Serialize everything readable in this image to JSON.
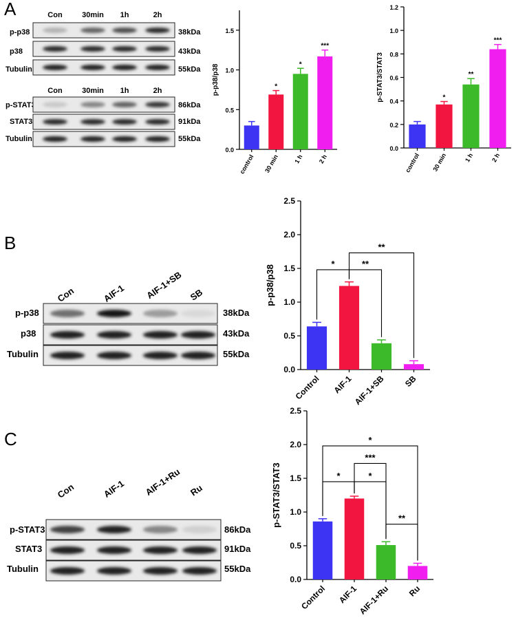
{
  "figure": {
    "panels": [
      {
        "label": "A",
        "blots": [
          {
            "lanes": [
              "Con",
              "30min",
              "1h",
              "2h"
            ],
            "rows": [
              {
                "name": "p-p38",
                "kda": "38kDa",
                "intensity": [
                  0.25,
                  0.6,
                  0.7,
                  0.85
                ]
              },
              {
                "name": "p38",
                "kda": "43kDa",
                "intensity": [
                  0.85,
                  0.85,
                  0.85,
                  0.85
                ]
              },
              {
                "name": "Tubulin",
                "kda": "55kDa",
                "intensity": [
                  0.9,
                  0.9,
                  0.9,
                  0.9
                ]
              }
            ]
          },
          {
            "lanes": [
              "Con",
              "30min",
              "1h",
              "2h"
            ],
            "rows": [
              {
                "name": "p-STAT3",
                "kda": "86kDa",
                "intensity": [
                  0.15,
                  0.45,
                  0.6,
                  0.8
                ]
              },
              {
                "name": "STAT3",
                "kda": "91kDa",
                "intensity": [
                  0.85,
                  0.85,
                  0.85,
                  0.85
                ]
              },
              {
                "name": "Tubulin",
                "kda": "55kDa",
                "intensity": [
                  0.9,
                  0.9,
                  0.9,
                  0.9
                ]
              }
            ]
          }
        ]
      },
      {
        "label": "B",
        "blots": [
          {
            "lanes": [
              "Con",
              "AIF-1",
              "AIF-1+SB",
              "SB"
            ],
            "rows": [
              {
                "name": "p-p38",
                "kda": "38kDa",
                "intensity": [
                  0.55,
                  0.95,
                  0.35,
                  0.08
                ]
              },
              {
                "name": "p38",
                "kda": "43kDa",
                "intensity": [
                  0.9,
                  0.9,
                  0.9,
                  0.9
                ]
              },
              {
                "name": "Tubulin",
                "kda": "55kDa",
                "intensity": [
                  0.9,
                  0.9,
                  0.9,
                  0.9
                ]
              }
            ]
          }
        ]
      },
      {
        "label": "C",
        "blots": [
          {
            "lanes": [
              "Con",
              "AIF-1",
              "AIF-1+Ru",
              "Ru"
            ],
            "rows": [
              {
                "name": "p-STAT3",
                "kda": "86kDa",
                "intensity": [
                  0.75,
                  0.9,
                  0.45,
                  0.12
                ]
              },
              {
                "name": "STAT3",
                "kda": "91kDa",
                "intensity": [
                  0.9,
                  0.9,
                  0.9,
                  0.9
                ]
              },
              {
                "name": "Tubulin",
                "kda": "55kDa",
                "intensity": [
                  0.9,
                  0.9,
                  0.9,
                  0.9
                ]
              }
            ]
          }
        ]
      }
    ]
  },
  "chart_data": [
    {
      "type": "bar",
      "panel": "A",
      "categories": [
        "control",
        "30 min",
        "1 h",
        "2 h"
      ],
      "values": [
        0.3,
        0.69,
        0.95,
        1.17
      ],
      "errors": [
        0.05,
        0.05,
        0.07,
        0.08
      ],
      "colors": [
        "#3d33f2",
        "#f2153f",
        "#3cba2a",
        "#f01ff0"
      ],
      "significance": [
        "",
        "*",
        "*",
        "***"
      ],
      "ylabel": "p-p38/p38",
      "ylim": [
        0,
        1.75
      ],
      "yticks": [
        0.0,
        0.5,
        1.0,
        1.5
      ],
      "ytick_labels": [
        "0.0",
        "0.5",
        "1.0",
        "1.5"
      ],
      "brackets": []
    },
    {
      "type": "bar",
      "panel": "A",
      "categories": [
        "control",
        "30 min",
        "1 h",
        "2 h"
      ],
      "values": [
        0.2,
        0.37,
        0.54,
        0.84
      ],
      "errors": [
        0.025,
        0.025,
        0.05,
        0.04
      ],
      "colors": [
        "#3d33f2",
        "#f2153f",
        "#3cba2a",
        "#f01ff0"
      ],
      "significance": [
        "",
        "*",
        "**",
        "***"
      ],
      "ylabel": "p-STAT3/STAT3",
      "ylim": [
        0,
        1.2
      ],
      "yticks": [
        0.0,
        0.2,
        0.4,
        0.6,
        0.8,
        1.0,
        1.2
      ],
      "ytick_labels": [
        "0.0",
        "0.2",
        "0.4",
        "0.6",
        "0.8",
        "1.0",
        "1.2"
      ],
      "brackets": []
    },
    {
      "type": "bar",
      "panel": "B",
      "categories": [
        "Control",
        "AIF-1",
        "AIF-1+SB",
        "SB"
      ],
      "values": [
        0.64,
        1.24,
        0.39,
        0.08
      ],
      "errors": [
        0.06,
        0.06,
        0.05,
        0.05
      ],
      "colors": [
        "#3d33f2",
        "#f2153f",
        "#3cba2a",
        "#f01ff0"
      ],
      "significance": [
        "",
        "",
        "",
        ""
      ],
      "ylabel": "p-p38/p38",
      "ylim": [
        0,
        2.5
      ],
      "yticks": [
        0.0,
        0.5,
        1.0,
        1.5,
        2.0,
        2.5
      ],
      "ytick_labels": [
        "0.0",
        "0.5",
        "1.0",
        "1.5",
        "2.0",
        "2.5"
      ],
      "brackets": [
        {
          "from": 0,
          "to": 1,
          "y": 1.48,
          "label": "*"
        },
        {
          "from": 1,
          "to": 2,
          "y": 1.48,
          "label": "**"
        },
        {
          "from": 1,
          "to": 3,
          "y": 1.73,
          "label": "**"
        }
      ]
    },
    {
      "type": "bar",
      "panel": "C",
      "categories": [
        "Control",
        "AIF-1",
        "AIF-1+Ru",
        "Ru"
      ],
      "values": [
        0.86,
        1.2,
        0.51,
        0.2
      ],
      "errors": [
        0.04,
        0.035,
        0.05,
        0.04
      ],
      "colors": [
        "#3d33f2",
        "#f2153f",
        "#3cba2a",
        "#f01ff0"
      ],
      "significance": [
        "",
        "",
        "",
        ""
      ],
      "ylabel": "p-STAT3/STAT3",
      "ylim": [
        0,
        2.5
      ],
      "yticks": [
        0.0,
        0.5,
        1.0,
        1.5,
        2.0,
        2.5
      ],
      "ytick_labels": [
        "0.0",
        "0.5",
        "1.0",
        "1.5",
        "2.0",
        "2.5"
      ],
      "brackets": [
        {
          "from": 0,
          "to": 1,
          "y": 1.45,
          "label": "*"
        },
        {
          "from": 1,
          "to": 2,
          "y": 1.45,
          "label": "*"
        },
        {
          "from": 1,
          "to": 2,
          "y": 1.72,
          "label": "***"
        },
        {
          "from": 0,
          "to": 3,
          "y": 1.98,
          "label": "*"
        },
        {
          "from": 2,
          "to": 3,
          "y": 0.82,
          "label": "**"
        }
      ]
    }
  ]
}
